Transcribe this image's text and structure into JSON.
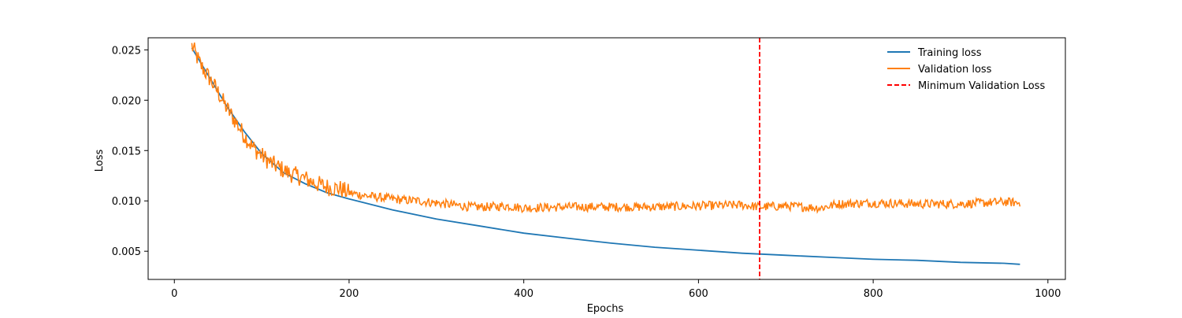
{
  "chart_data": {
    "type": "line",
    "title": "",
    "xlabel": "Epochs",
    "ylabel": "Loss",
    "xlim": [
      -30,
      1020
    ],
    "ylim": [
      0.0022,
      0.0262
    ],
    "xticks": [
      0,
      200,
      400,
      600,
      800,
      1000
    ],
    "xtick_labels": [
      "0",
      "200",
      "400",
      "600",
      "800",
      "1000"
    ],
    "yticks": [
      0.005,
      0.01,
      0.015,
      0.02,
      0.025
    ],
    "ytick_labels": [
      "0.005",
      "0.010",
      "0.015",
      "0.020",
      "0.025"
    ],
    "grid": false,
    "legend_position": "top-right",
    "series": [
      {
        "name": "Training loss",
        "color": "#1f77b4",
        "x": [
          20,
          40,
          60,
          80,
          100,
          125,
          150,
          175,
          200,
          250,
          300,
          350,
          400,
          450,
          500,
          550,
          600,
          650,
          700,
          750,
          800,
          850,
          900,
          950,
          968
        ],
        "values": [
          0.0252,
          0.0223,
          0.0194,
          0.0169,
          0.0147,
          0.0128,
          0.0117,
          0.0108,
          0.0102,
          0.0091,
          0.0082,
          0.0075,
          0.0068,
          0.0063,
          0.0058,
          0.0054,
          0.0051,
          0.0048,
          0.0046,
          0.0044,
          0.0042,
          0.0041,
          0.0039,
          0.0038,
          0.0037
        ]
      },
      {
        "name": "Validation loss",
        "color": "#ff7f0e",
        "x": [
          20,
          30,
          40,
          50,
          60,
          70,
          80,
          90,
          100,
          110,
          120,
          130,
          140,
          150,
          160,
          170,
          180,
          190,
          200,
          220,
          240,
          260,
          280,
          300,
          320,
          340,
          360,
          380,
          400,
          450,
          500,
          550,
          600,
          650,
          670,
          700,
          740,
          760,
          800,
          850,
          900,
          950,
          968
        ],
        "values": [
          0.0254,
          0.0235,
          0.0222,
          0.0208,
          0.0192,
          0.0179,
          0.0165,
          0.0153,
          0.0145,
          0.0138,
          0.0133,
          0.0128,
          0.0125,
          0.0122,
          0.0118,
          0.0115,
          0.0113,
          0.0112,
          0.0108,
          0.0105,
          0.0103,
          0.0101,
          0.01,
          0.0098,
          0.0096,
          0.0094,
          0.0094,
          0.0095,
          0.0093,
          0.0094,
          0.0094,
          0.0094,
          0.0095,
          0.0096,
          0.0094,
          0.0095,
          0.0093,
          0.0097,
          0.0098,
          0.0097,
          0.0097,
          0.0099,
          0.0098
        ]
      },
      {
        "name": "Minimum Validation Loss",
        "color": "#ff0000",
        "style": "dashed",
        "x_value": 670
      }
    ]
  }
}
